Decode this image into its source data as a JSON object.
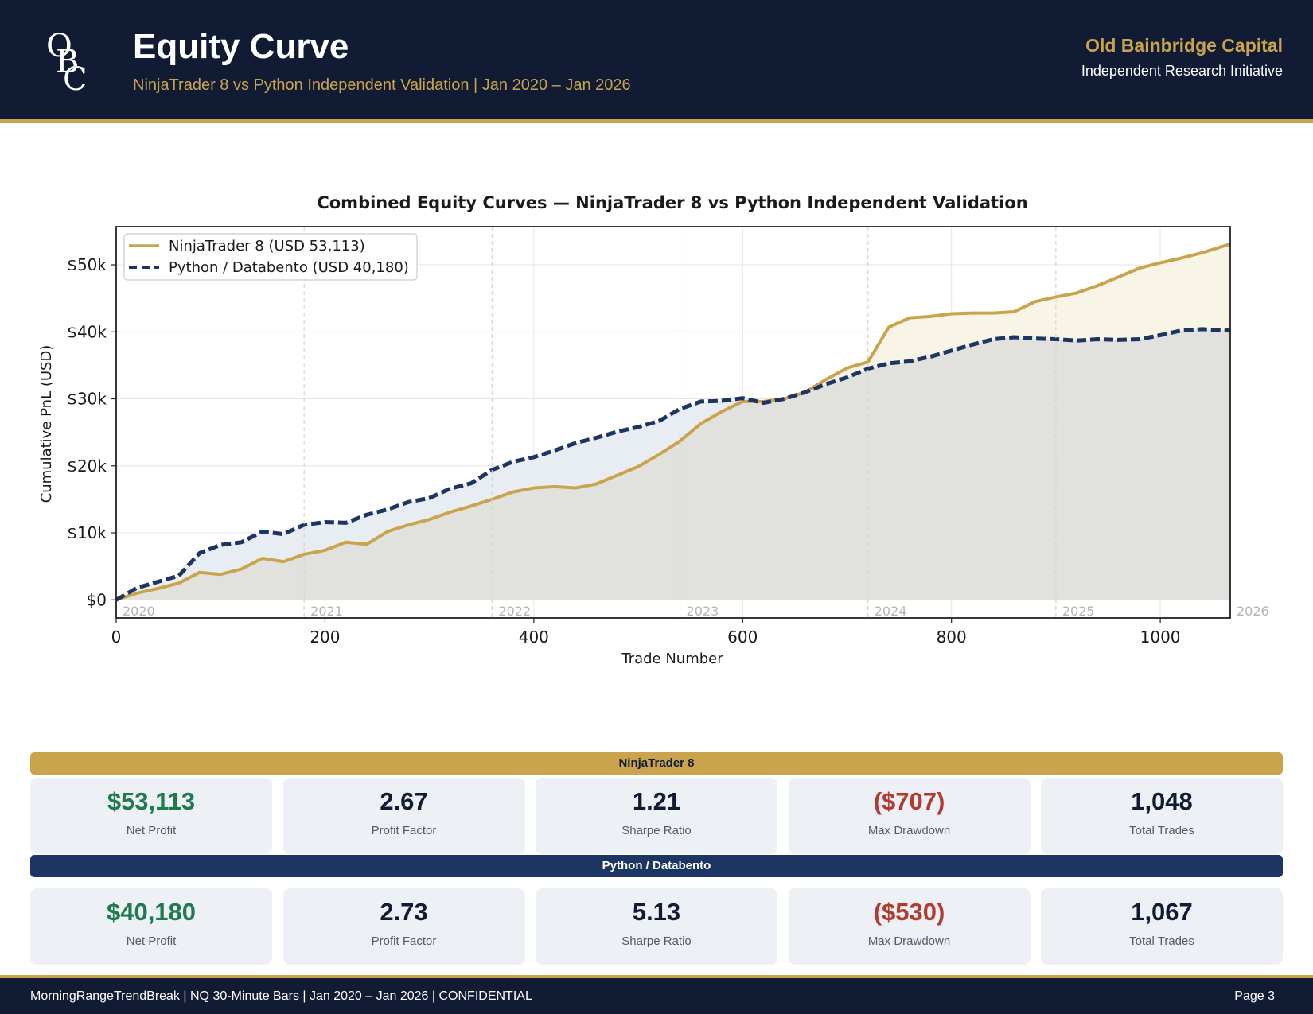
{
  "header": {
    "logo_letters": [
      "O",
      "B",
      "C"
    ],
    "title": "Equity Curve",
    "subtitle": "NinjaTrader 8 vs Python Independent Validation | Jan 2020 – Jan 2026",
    "firm_name": "Old Bainbridge Capital",
    "firm_tagline": "Independent Research Initiative"
  },
  "colors": {
    "navy": "#111b33",
    "gold": "#c9a44c",
    "series_nt": "#c9a44c",
    "series_py": "#1c3563",
    "positive": "#1f7a4c",
    "negative": "#b23a2e"
  },
  "chart_data": {
    "type": "line",
    "title": "Combined Equity Curves — NinjaTrader 8 vs Python Independent Validation",
    "xlabel": "Trade Number",
    "ylabel": "Cumulative PnL (USD)",
    "xlim": [
      0,
      1067
    ],
    "ylim": [
      -2700,
      55700
    ],
    "x_ticks": [
      0,
      200,
      400,
      600,
      800,
      1000
    ],
    "y_ticks": [
      0,
      10000,
      20000,
      30000,
      40000,
      50000
    ],
    "y_tick_labels": [
      "$0",
      "$10k",
      "$20k",
      "$30k",
      "$40k",
      "$50k"
    ],
    "grid": true,
    "legend_position": "top-left",
    "year_markers": [
      {
        "label": "2020",
        "x": 0
      },
      {
        "label": "2021",
        "x": 180
      },
      {
        "label": "2022",
        "x": 360
      },
      {
        "label": "2023",
        "x": 540
      },
      {
        "label": "2024",
        "x": 720
      },
      {
        "label": "2025",
        "x": 900
      },
      {
        "label": "2026",
        "x": 1067
      }
    ],
    "series": [
      {
        "name": "NinjaTrader 8",
        "legend_label": "NinjaTrader 8  (USD 53,113)",
        "style": "solid",
        "x": [
          0,
          20,
          40,
          60,
          80,
          100,
          120,
          140,
          160,
          180,
          200,
          220,
          240,
          260,
          280,
          300,
          320,
          340,
          360,
          380,
          400,
          420,
          440,
          460,
          480,
          500,
          520,
          540,
          560,
          580,
          600,
          620,
          640,
          660,
          680,
          700,
          720,
          740,
          760,
          780,
          800,
          820,
          840,
          860,
          880,
          900,
          920,
          940,
          960,
          980,
          1000,
          1020,
          1040,
          1067
        ],
        "values": [
          0,
          1000,
          1700,
          2500,
          4100,
          3800,
          4600,
          6200,
          5700,
          6800,
          7400,
          8600,
          8300,
          10200,
          11200,
          12000,
          13100,
          14000,
          15000,
          16100,
          16700,
          16900,
          16700,
          17300,
          18600,
          19900,
          21700,
          23700,
          26300,
          28100,
          29600,
          29600,
          30000,
          31000,
          32900,
          34600,
          35500,
          40700,
          42100,
          42300,
          42700,
          42800,
          42800,
          43000,
          44500,
          45200,
          45800,
          46900,
          48200,
          49500,
          50300,
          51000,
          51800,
          53113
        ]
      },
      {
        "name": "Python / Databento",
        "legend_label": "Python / Databento  (USD 40,180)",
        "style": "dashed",
        "x": [
          0,
          20,
          40,
          60,
          80,
          100,
          120,
          140,
          160,
          180,
          200,
          220,
          240,
          260,
          280,
          300,
          320,
          340,
          360,
          380,
          400,
          420,
          440,
          460,
          480,
          500,
          520,
          540,
          560,
          580,
          600,
          620,
          640,
          660,
          680,
          700,
          720,
          740,
          760,
          780,
          800,
          820,
          840,
          860,
          880,
          900,
          920,
          940,
          960,
          980,
          1000,
          1020,
          1040,
          1067
        ],
        "values": [
          0,
          1800,
          2700,
          3600,
          7000,
          8200,
          8600,
          10200,
          9800,
          11200,
          11600,
          11500,
          12700,
          13500,
          14600,
          15200,
          16600,
          17400,
          19400,
          20600,
          21300,
          22300,
          23400,
          24200,
          25100,
          25800,
          26700,
          28500,
          29600,
          29700,
          30100,
          29400,
          30000,
          31000,
          32200,
          33200,
          34500,
          35300,
          35600,
          36300,
          37200,
          38100,
          38900,
          39200,
          39000,
          38900,
          38700,
          38900,
          38800,
          38900,
          39500,
          40200,
          40400,
          40180
        ]
      }
    ]
  },
  "stats": {
    "ninjatrader": {
      "label": "NinjaTrader 8",
      "cards": [
        {
          "value": "$53,113",
          "label": "Net Profit",
          "tone": "pos"
        },
        {
          "value": "2.67",
          "label": "Profit Factor",
          "tone": ""
        },
        {
          "value": "1.21",
          "label": "Sharpe Ratio",
          "tone": ""
        },
        {
          "value": "($707)",
          "label": "Max Drawdown",
          "tone": "neg"
        },
        {
          "value": "1,048",
          "label": "Total Trades",
          "tone": ""
        }
      ]
    },
    "python": {
      "label": "Python / Databento",
      "cards": [
        {
          "value": "$40,180",
          "label": "Net Profit",
          "tone": "pos"
        },
        {
          "value": "2.73",
          "label": "Profit Factor",
          "tone": ""
        },
        {
          "value": "5.13",
          "label": "Sharpe Ratio",
          "tone": ""
        },
        {
          "value": "($530)",
          "label": "Max Drawdown",
          "tone": "neg"
        },
        {
          "value": "1,067",
          "label": "Total Trades",
          "tone": ""
        }
      ]
    }
  },
  "footer": {
    "left": "MorningRangeTrendBreak | NQ 30-Minute Bars | Jan 2020 – Jan 2026 | CONFIDENTIAL",
    "right": "Page 3"
  }
}
